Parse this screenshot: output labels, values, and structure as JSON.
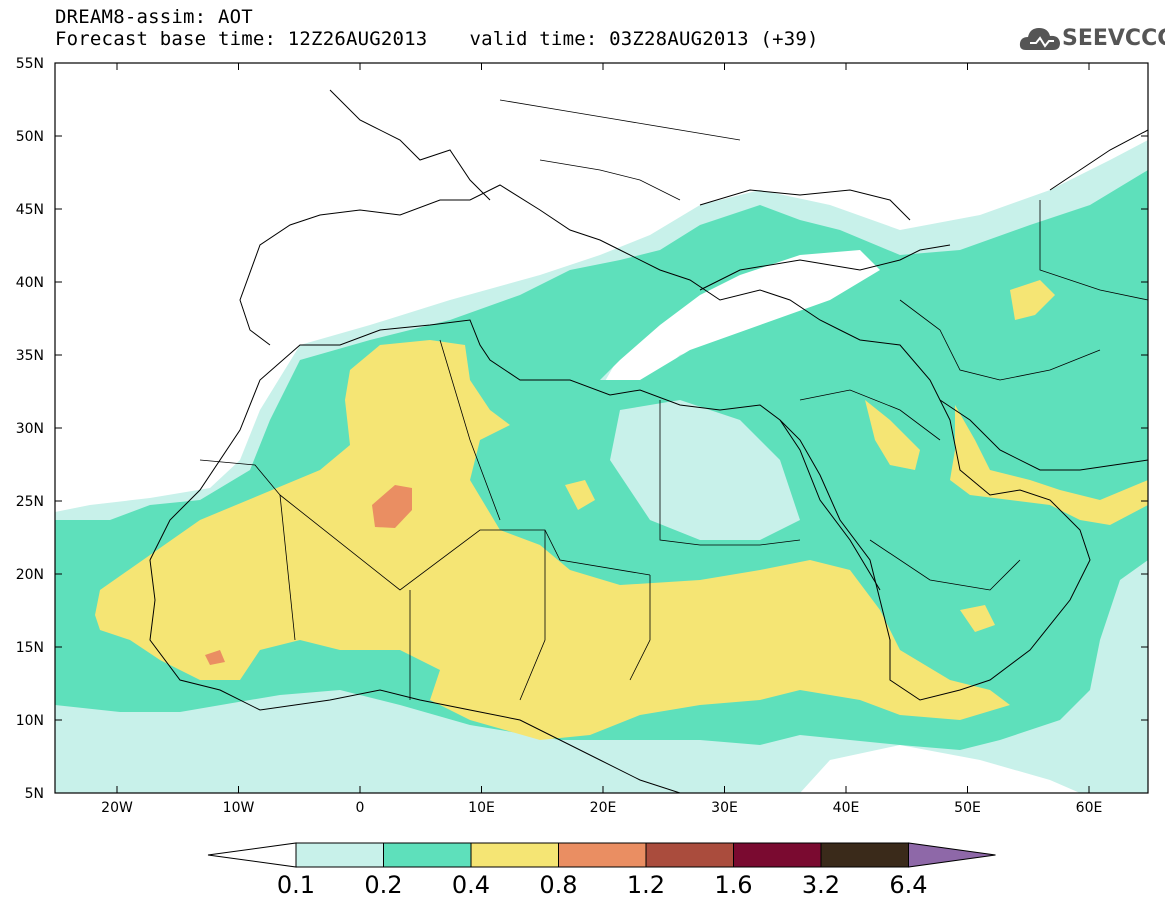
{
  "header": {
    "line1": "DREAM8-assim: AOT",
    "base_time": "Forecast base time: 12Z26AUG2013",
    "valid_time": "valid time: 03Z28AUG2013 (+39)"
  },
  "logo": {
    "icon": "cloud-icon",
    "text": "SEEVCCC"
  },
  "map": {
    "variable": "AOT",
    "lat_labels": [
      "55N",
      "50N",
      "45N",
      "40N",
      "35N",
      "30N",
      "25N",
      "20N",
      "15N",
      "10N",
      "5N"
    ],
    "lon_labels": [
      "20W",
      "10W",
      "0",
      "10E",
      "20E",
      "30E",
      "40E",
      "50E",
      "60E"
    ]
  },
  "colorbar": {
    "levels": [
      "0.1",
      "0.2",
      "0.4",
      "0.8",
      "1.2",
      "1.6",
      "3.2",
      "6.4"
    ],
    "colors": [
      "#ffffff",
      "#c8f1ea",
      "#5ee0bb",
      "#f5e574",
      "#ea8e62",
      "#aa4c3d",
      "#7a0a30",
      "#3a2a1a",
      "#8e68a8"
    ]
  }
}
